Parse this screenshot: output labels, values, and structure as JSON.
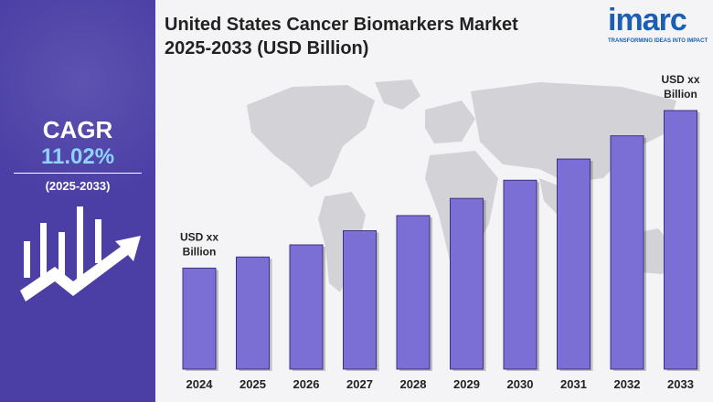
{
  "sidebar": {
    "cagr_label": "CAGR",
    "cagr_value": "11.02%",
    "period": "(2025-2033)",
    "icon": "bar-growth-arrow-icon"
  },
  "header": {
    "title_line1": "United States Cancer Biomarkers Market",
    "title_line2": "2025-2033 (USD Billion)"
  },
  "logo": {
    "word": "imarc",
    "tagline": "TRANSFORMING IDEAS INTO IMPACT"
  },
  "colors": {
    "sidebar_bg": "#4b3fa6",
    "cagr_value": "#8fd3ff",
    "bar_fill": "#7b6fd6",
    "bar_edge": "#3b3280",
    "map": "#d3d3d7",
    "logo": "#1a5fb4",
    "logo_accent": "#f07b1d"
  },
  "chart_data": {
    "type": "bar",
    "categories": [
      "2024",
      "2025",
      "2026",
      "2027",
      "2028",
      "2029",
      "2030",
      "2031",
      "2032",
      "2033"
    ],
    "values": [
      1.0,
      1.11,
      1.23,
      1.37,
      1.52,
      1.69,
      1.87,
      2.08,
      2.31,
      2.56
    ],
    "annotations": [
      {
        "category": "2024",
        "text_line1": "USD xx",
        "text_line2": "Billion"
      },
      {
        "category": "2033",
        "text_line1": "USD xx",
        "text_line2": "Billion"
      }
    ],
    "title": "",
    "xlabel": "",
    "ylabel": "",
    "grid": false,
    "legend": "none"
  }
}
